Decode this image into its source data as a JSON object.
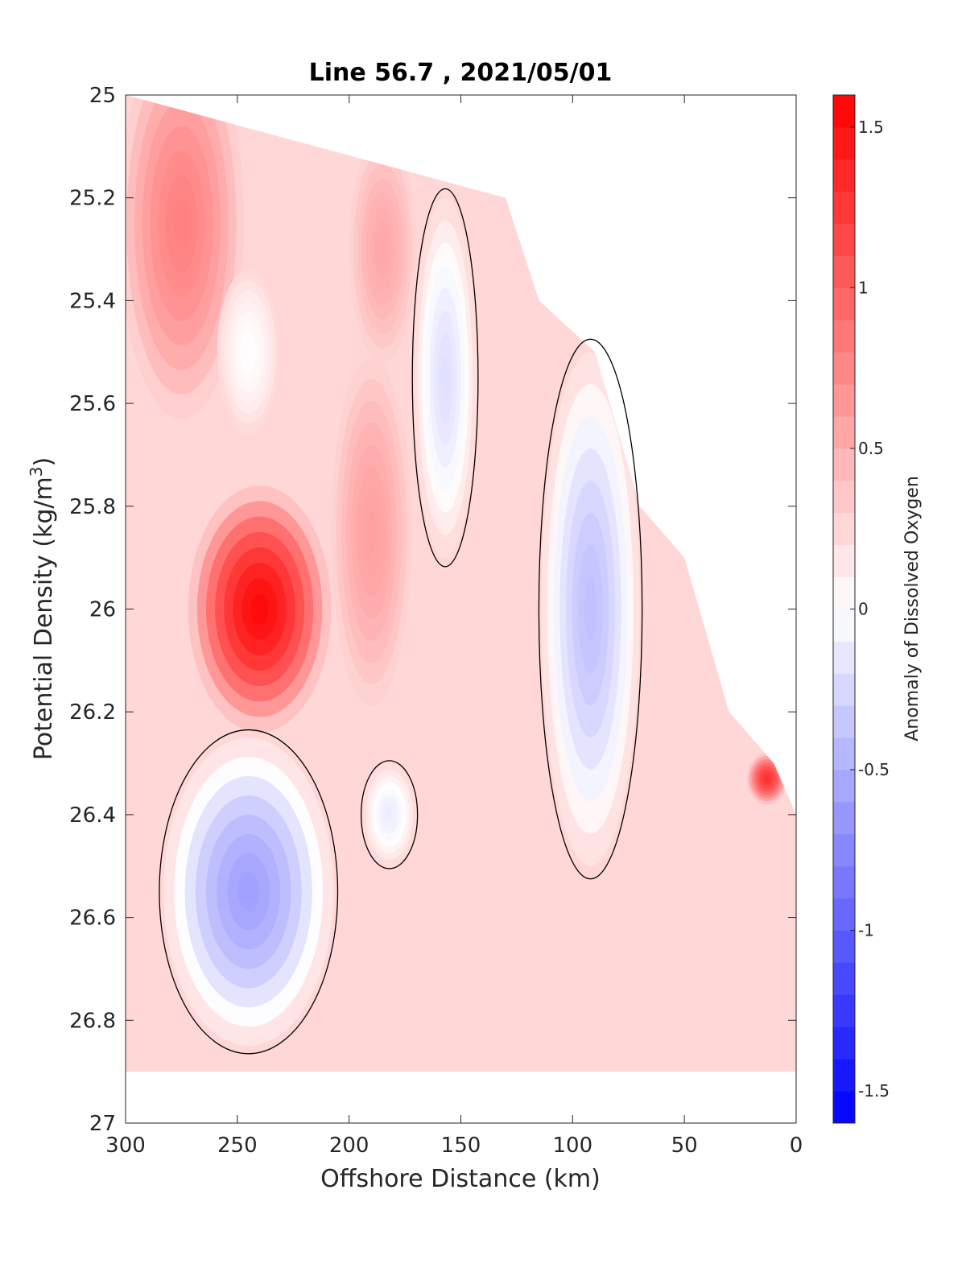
{
  "chart_data": {
    "type": "heatmap",
    "subtype": "filled-contour",
    "title": "Line 56.7 , 2021/05/01",
    "xlabel": "Offshore Distance (km)",
    "ylabel_main": "Potential Density (kg/m",
    "ylabel_sup": "3",
    "ylabel_close": ")",
    "xlim": [
      300,
      0
    ],
    "ylim": [
      27,
      25
    ],
    "x_reversed": true,
    "y_reversed": true,
    "x_ticks": [
      300,
      250,
      200,
      150,
      100,
      50,
      0
    ],
    "y_ticks": [
      25,
      25.2,
      25.4,
      25.6,
      25.8,
      26,
      26.2,
      26.4,
      26.6,
      26.8,
      27
    ],
    "y_tick_labels": [
      "25",
      "25.2",
      "25.4",
      "25.6",
      "25.8",
      "26",
      "26.2",
      "26.4",
      "26.6",
      "26.8",
      "27"
    ],
    "colorbar": {
      "label": "Anomaly of Dissolved Oxygen",
      "range": [
        -1.6,
        1.6
      ],
      "step": 0.1,
      "ticks": [
        -1.5,
        -1,
        -0.5,
        0,
        0.5,
        1,
        1.5
      ],
      "tick_labels": [
        "-1.5",
        "-1",
        "-0.5",
        "0",
        "0.5",
        "1",
        "1.5"
      ],
      "colors": {
        "low": "#0000ff",
        "mid": "#ffffff",
        "high": "#ff0000"
      }
    },
    "zero_contour": true,
    "grid": false,
    "data_extent": {
      "bottom_sigma": 26.9,
      "shelf_edge": [
        [
          300,
          25
        ],
        [
          130,
          25.2
        ],
        [
          115,
          25.4
        ],
        [
          90,
          25.5
        ],
        [
          70,
          25.8
        ],
        [
          50,
          25.9
        ],
        [
          30,
          26.2
        ],
        [
          10,
          26.3
        ],
        [
          0,
          26.4
        ]
      ]
    },
    "features": [
      {
        "name": "strong positive core",
        "x": 240,
        "y": 26.0,
        "value": 1.55,
        "rx": 32,
        "ry": 0.24
      },
      {
        "name": "nearshore positive core",
        "x": 13,
        "y": 26.33,
        "value": 1.3,
        "rx": 9,
        "ry": 0.05
      },
      {
        "name": "offshore positive band",
        "x": 275,
        "y": 25.25,
        "value": 0.8,
        "rx": 28,
        "ry": 0.38
      },
      {
        "name": "positive mid band",
        "x": 190,
        "y": 25.85,
        "value": 0.6,
        "rx": 18,
        "ry": 0.34
      },
      {
        "name": "positive band upper",
        "x": 185,
        "y": 25.3,
        "value": 0.55,
        "rx": 15,
        "ry": 0.22
      },
      {
        "name": "near-zero pocket",
        "x": 245,
        "y": 25.5,
        "value": 0.0,
        "rx": 14,
        "ry": 0.16
      },
      {
        "name": "negative core lower",
        "x": 245,
        "y": 26.55,
        "value": -0.6,
        "rx": 38,
        "ry": 0.3
      },
      {
        "name": "negative core",
        "x": 92,
        "y": 26.0,
        "value": -0.4,
        "rx": 22,
        "ry": 0.5
      },
      {
        "name": "weak negative",
        "x": 157,
        "y": 25.55,
        "value": -0.2,
        "rx": 14,
        "ry": 0.35
      },
      {
        "name": "weak negative small",
        "x": 182,
        "y": 26.4,
        "value": -0.12,
        "rx": 12,
        "ry": 0.1
      }
    ]
  }
}
